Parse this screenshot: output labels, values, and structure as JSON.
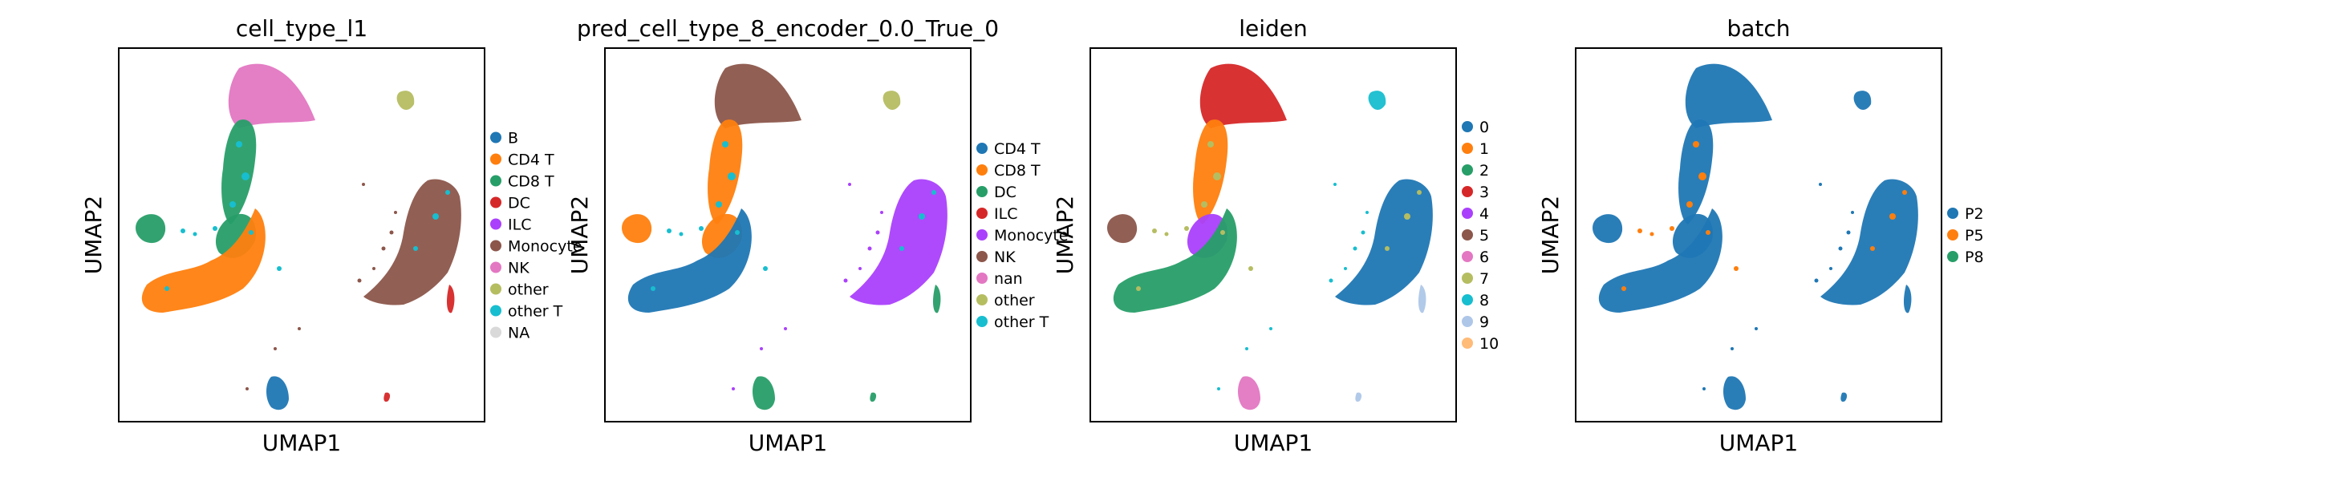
{
  "panels": [
    {
      "title": "cell_type_l1",
      "xlabel": "UMAP1",
      "ylabel": "UMAP2",
      "legend": [
        {
          "label": "B",
          "color": "#1f77b4"
        },
        {
          "label": "CD4 T",
          "color": "#ff7f0e"
        },
        {
          "label": "CD8 T",
          "color": "#279e68"
        },
        {
          "label": "DC",
          "color": "#d62728"
        },
        {
          "label": "ILC",
          "color": "#aa40fc"
        },
        {
          "label": "Monocyte",
          "color": "#8c564b"
        },
        {
          "label": "NK",
          "color": "#e377c2"
        },
        {
          "label": "other",
          "color": "#b5bd61"
        },
        {
          "label": "other T",
          "color": "#17becf"
        },
        {
          "label": "NA",
          "color": "#d9d9d9"
        }
      ],
      "colors": {
        "upper": "#e377c2",
        "stem": "#279e68",
        "mid": "#279e68",
        "lower": "#ff7f0e",
        "left": "#279e68",
        "mono": "#8c564b",
        "monotail": "#d62728",
        "top": "#b5bd61",
        "bottom": "#1f77b4",
        "br": "#d62728",
        "mix": "#17becf",
        "scatter": "#8c564b"
      }
    },
    {
      "title": "pred_cell_type_8_encoder_0.0_True_0",
      "xlabel": "UMAP1",
      "ylabel": "UMAP2",
      "legend": [
        {
          "label": "CD4 T",
          "color": "#1f77b4"
        },
        {
          "label": "CD8 T",
          "color": "#ff7f0e"
        },
        {
          "label": "DC",
          "color": "#279e68"
        },
        {
          "label": "ILC",
          "color": "#d62728"
        },
        {
          "label": "Monocyte",
          "color": "#aa40fc"
        },
        {
          "label": "NK",
          "color": "#8c564b"
        },
        {
          "label": "nan",
          "color": "#e377c2"
        },
        {
          "label": "other",
          "color": "#b5bd61"
        },
        {
          "label": "other T",
          "color": "#17becf"
        }
      ],
      "colors": {
        "upper": "#8c564b",
        "stem": "#ff7f0e",
        "mid": "#ff7f0e",
        "lower": "#1f77b4",
        "left": "#ff7f0e",
        "mono": "#aa40fc",
        "monotail": "#279e68",
        "top": "#b5bd61",
        "bottom": "#279e68",
        "br": "#279e68",
        "mix": "#17becf",
        "scatter": "#aa40fc"
      }
    },
    {
      "title": "leiden",
      "xlabel": "UMAP1",
      "ylabel": "UMAP2",
      "legend": [
        {
          "label": "0",
          "color": "#1f77b4"
        },
        {
          "label": "1",
          "color": "#ff7f0e"
        },
        {
          "label": "2",
          "color": "#279e68"
        },
        {
          "label": "3",
          "color": "#d62728"
        },
        {
          "label": "4",
          "color": "#aa40fc"
        },
        {
          "label": "5",
          "color": "#8c564b"
        },
        {
          "label": "6",
          "color": "#e377c2"
        },
        {
          "label": "7",
          "color": "#b5bd61"
        },
        {
          "label": "8",
          "color": "#17becf"
        },
        {
          "label": "9",
          "color": "#aec7e8"
        },
        {
          "label": "10",
          "color": "#ffbb78"
        }
      ],
      "colors": {
        "upper": "#d62728",
        "stem": "#ff7f0e",
        "mid": "#aa40fc",
        "lower": "#279e68",
        "left": "#8c564b",
        "mono": "#1f77b4",
        "monotail": "#aec7e8",
        "top": "#17becf",
        "bottom": "#e377c2",
        "br": "#aec7e8",
        "mix": "#b5bd61",
        "scatter": "#17becf"
      }
    },
    {
      "title": "batch",
      "xlabel": "UMAP1",
      "ylabel": "UMAP2",
      "legend": [
        {
          "label": "P2",
          "color": "#1f77b4"
        },
        {
          "label": "P5",
          "color": "#ff7f0e"
        },
        {
          "label": "P8",
          "color": "#279e68"
        }
      ],
      "colors": {
        "upper": "#1f77b4",
        "stem": "#1f77b4",
        "mid": "#1f77b4",
        "lower": "#1f77b4",
        "left": "#1f77b4",
        "mono": "#1f77b4",
        "monotail": "#1f77b4",
        "top": "#1f77b4",
        "bottom": "#1f77b4",
        "br": "#1f77b4",
        "mix": "#ff7f0e",
        "scatter": "#1f77b4"
      }
    }
  ],
  "chart_data": [
    {
      "type": "scatter",
      "title": "cell_type_l1",
      "xlabel": "UMAP1",
      "ylabel": "UMAP2",
      "series": [
        {
          "name": "B"
        },
        {
          "name": "CD4 T"
        },
        {
          "name": "CD8 T"
        },
        {
          "name": "DC"
        },
        {
          "name": "ILC"
        },
        {
          "name": "Monocyte"
        },
        {
          "name": "NK"
        },
        {
          "name": "other"
        },
        {
          "name": "other T"
        },
        {
          "name": "NA"
        }
      ],
      "legend": "right",
      "grid": false
    },
    {
      "type": "scatter",
      "title": "pred_cell_type_8_encoder_0.0_True_0",
      "xlabel": "UMAP1",
      "ylabel": "UMAP2",
      "series": [
        {
          "name": "CD4 T"
        },
        {
          "name": "CD8 T"
        },
        {
          "name": "DC"
        },
        {
          "name": "ILC"
        },
        {
          "name": "Monocyte"
        },
        {
          "name": "NK"
        },
        {
          "name": "nan"
        },
        {
          "name": "other"
        },
        {
          "name": "other T"
        }
      ],
      "legend": "right",
      "grid": false
    },
    {
      "type": "scatter",
      "title": "leiden",
      "xlabel": "UMAP1",
      "ylabel": "UMAP2",
      "series": [
        {
          "name": "0"
        },
        {
          "name": "1"
        },
        {
          "name": "2"
        },
        {
          "name": "3"
        },
        {
          "name": "4"
        },
        {
          "name": "5"
        },
        {
          "name": "6"
        },
        {
          "name": "7"
        },
        {
          "name": "8"
        },
        {
          "name": "9"
        },
        {
          "name": "10"
        }
      ],
      "legend": "right",
      "grid": false
    },
    {
      "type": "scatter",
      "title": "batch",
      "xlabel": "UMAP1",
      "ylabel": "UMAP2",
      "series": [
        {
          "name": "P2"
        },
        {
          "name": "P5"
        },
        {
          "name": "P8"
        }
      ],
      "legend": "right",
      "grid": false
    }
  ]
}
